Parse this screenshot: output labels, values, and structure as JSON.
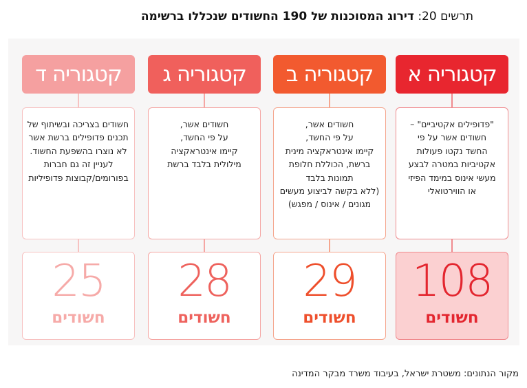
{
  "title": {
    "prefix": "תרשים 20:",
    "main": "דירוג המסוכנות של 190 החשודים שנכללו ברשימה"
  },
  "categories": [
    {
      "header": "קטגוריה א",
      "desc_lines": [
        "\"פדופילים אקטיביים\" –",
        "חשודים אשר על פי",
        "החשד נקטו פעולות",
        "אקטיביות במטרה לבצע",
        "מעשי אינוס במימד הפיזי",
        "או הווירטואלי"
      ],
      "count": "108",
      "unit": "חשודים",
      "header_color": "#e8262f",
      "line_color": "#f08a8e",
      "count_bg": "#fbd0d1",
      "count_color": "#e3262f"
    },
    {
      "header": "קטגוריה ב",
      "desc_lines": [
        "חשודים אשר,",
        "על פי החשד,",
        "קיימו אינטראקציה מינית",
        "ברשת, הכוללת חלופת",
        "תמונות בלבד",
        "(ללא בקשה לביצוע מעשים",
        "מגונים / אינוס / מפגש)"
      ],
      "count": "29",
      "unit": "חשודים",
      "header_color": "#f25a2f",
      "line_color": "#f5a68e",
      "count_bg": "#ffffff",
      "count_color": "#ee4f2c"
    },
    {
      "header": "קטגוריה ג",
      "desc_lines": [
        "חשודים אשר,",
        "על פי החשד,",
        "קיימו אינטראקציה",
        "מילולית בלבד ברשת"
      ],
      "count": "28",
      "unit": "חשודים",
      "header_color": "#f0605c",
      "line_color": "#f5a6a3",
      "count_bg": "#ffffff",
      "count_color": "#ee625d"
    },
    {
      "header": "קטגוריה ד",
      "desc_lines": [
        "חשודים בצריכה ובשיתוף של",
        "תכנים פדופילים ברשת אשר",
        "לא נוצרו בהשפעת החשוד.",
        "לעניין זה גם חברות",
        "בפורומים/קבוצות פדופיליות"
      ],
      "count": "25",
      "unit": "חשודים",
      "header_color": "#f5a0a0",
      "line_color": "#f7c2c1",
      "count_bg": "#ffffff",
      "count_color": "#f6aaa8"
    }
  ],
  "source": "מקור הנתונים: משטרת ישראל, בעיבוד משרד מבקר המדינה"
}
